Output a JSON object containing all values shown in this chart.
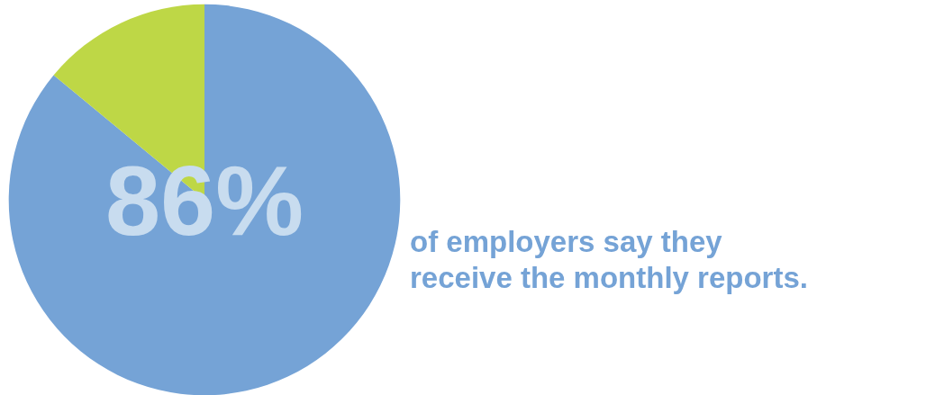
{
  "chart_data": {
    "type": "pie",
    "categories": [
      null,
      null
    ],
    "values": [
      86,
      14
    ],
    "colors": [
      "#75a3d6",
      "#bed746"
    ],
    "value_labels": [
      "86%",
      null
    ],
    "annotations": [
      "of employers say they receive the monthly reports."
    ]
  }
}
